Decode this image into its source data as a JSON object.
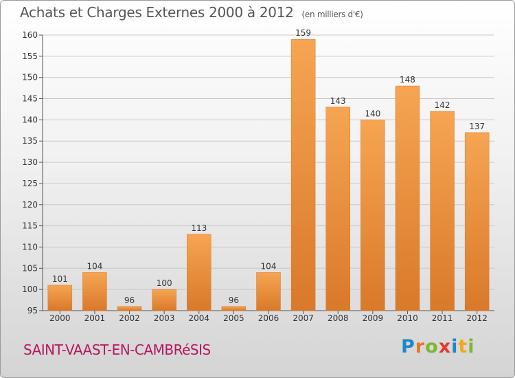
{
  "header": {
    "title": "Achats et Charges Externes 2000 à 2012",
    "unit": "(en milliers d'€)"
  },
  "footer": {
    "commune": "SAINT-VAAST-EN-CAMBRéSIS",
    "logo_letters": [
      "P",
      "r",
      "o",
      "x",
      "i",
      "t",
      "i"
    ],
    "logo_colors": [
      "#1e88c8",
      "#e8771f",
      "#7cb82f",
      "#e03a2e",
      "#1e88c8",
      "#f2a81d",
      "#7cb82f"
    ]
  },
  "chart_data": {
    "type": "bar",
    "categories": [
      "2000",
      "2001",
      "2002",
      "2003",
      "2004",
      "2005",
      "2006",
      "2007",
      "2008",
      "2009",
      "2010",
      "2011",
      "2012"
    ],
    "values": [
      101,
      104,
      96,
      100,
      113,
      96,
      104,
      159,
      143,
      140,
      148,
      142,
      137
    ],
    "value_labels": [
      "101",
      "104",
      "96",
      "100",
      "113",
      "96",
      "104",
      "159",
      "143",
      "140",
      "148",
      "142",
      "137"
    ],
    "yticks": [
      95,
      100,
      105,
      110,
      115,
      120,
      125,
      130,
      135,
      140,
      145,
      150,
      155,
      160
    ],
    "ylim": [
      95,
      160
    ],
    "grid": true,
    "colors": {
      "bar_light": "#f6a552",
      "bar_dark": "#d9792a",
      "grid": "#c8c8c8"
    }
  }
}
